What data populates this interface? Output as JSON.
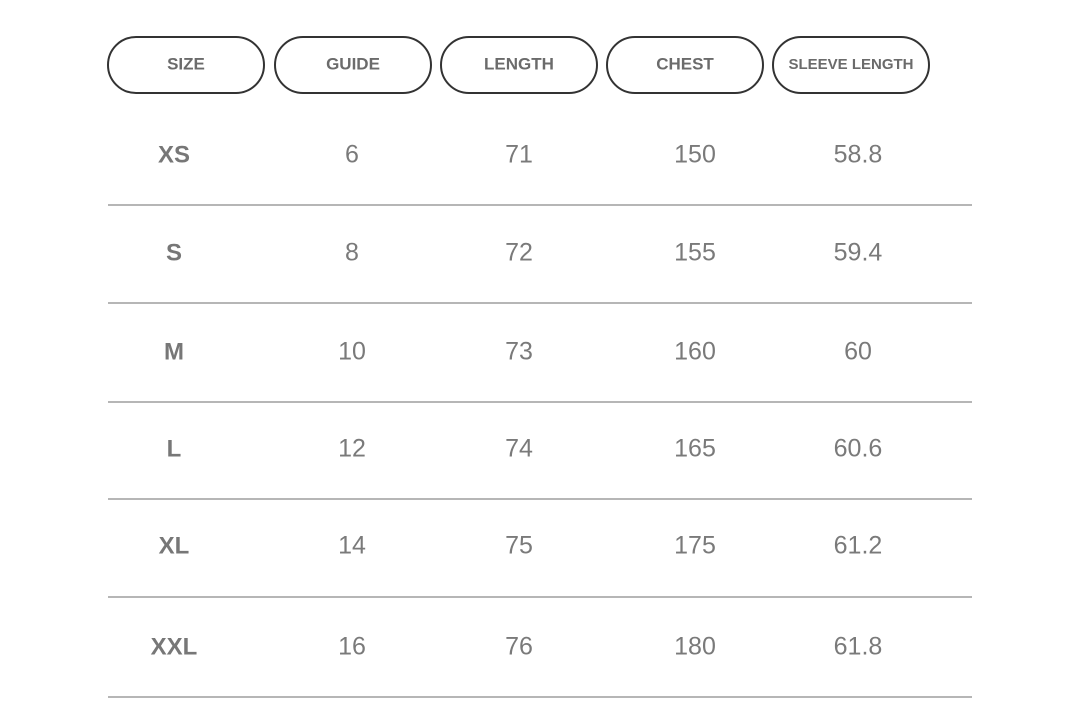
{
  "table": {
    "headers": [
      "SIZE",
      "GUIDE",
      "LENGTH",
      "CHEST",
      "SLEEVE LENGTH"
    ],
    "rows": [
      [
        "XS",
        "6",
        "71",
        "150",
        "58.8"
      ],
      [
        "S",
        "8",
        "72",
        "155",
        "59.4"
      ],
      [
        "M",
        "10",
        "73",
        "160",
        "60"
      ],
      [
        "L",
        "12",
        "74",
        "165",
        "60.6"
      ],
      [
        "XL",
        "14",
        "75",
        "175",
        "61.2"
      ],
      [
        "XXL",
        "16",
        "76",
        "180",
        "61.8"
      ]
    ]
  }
}
